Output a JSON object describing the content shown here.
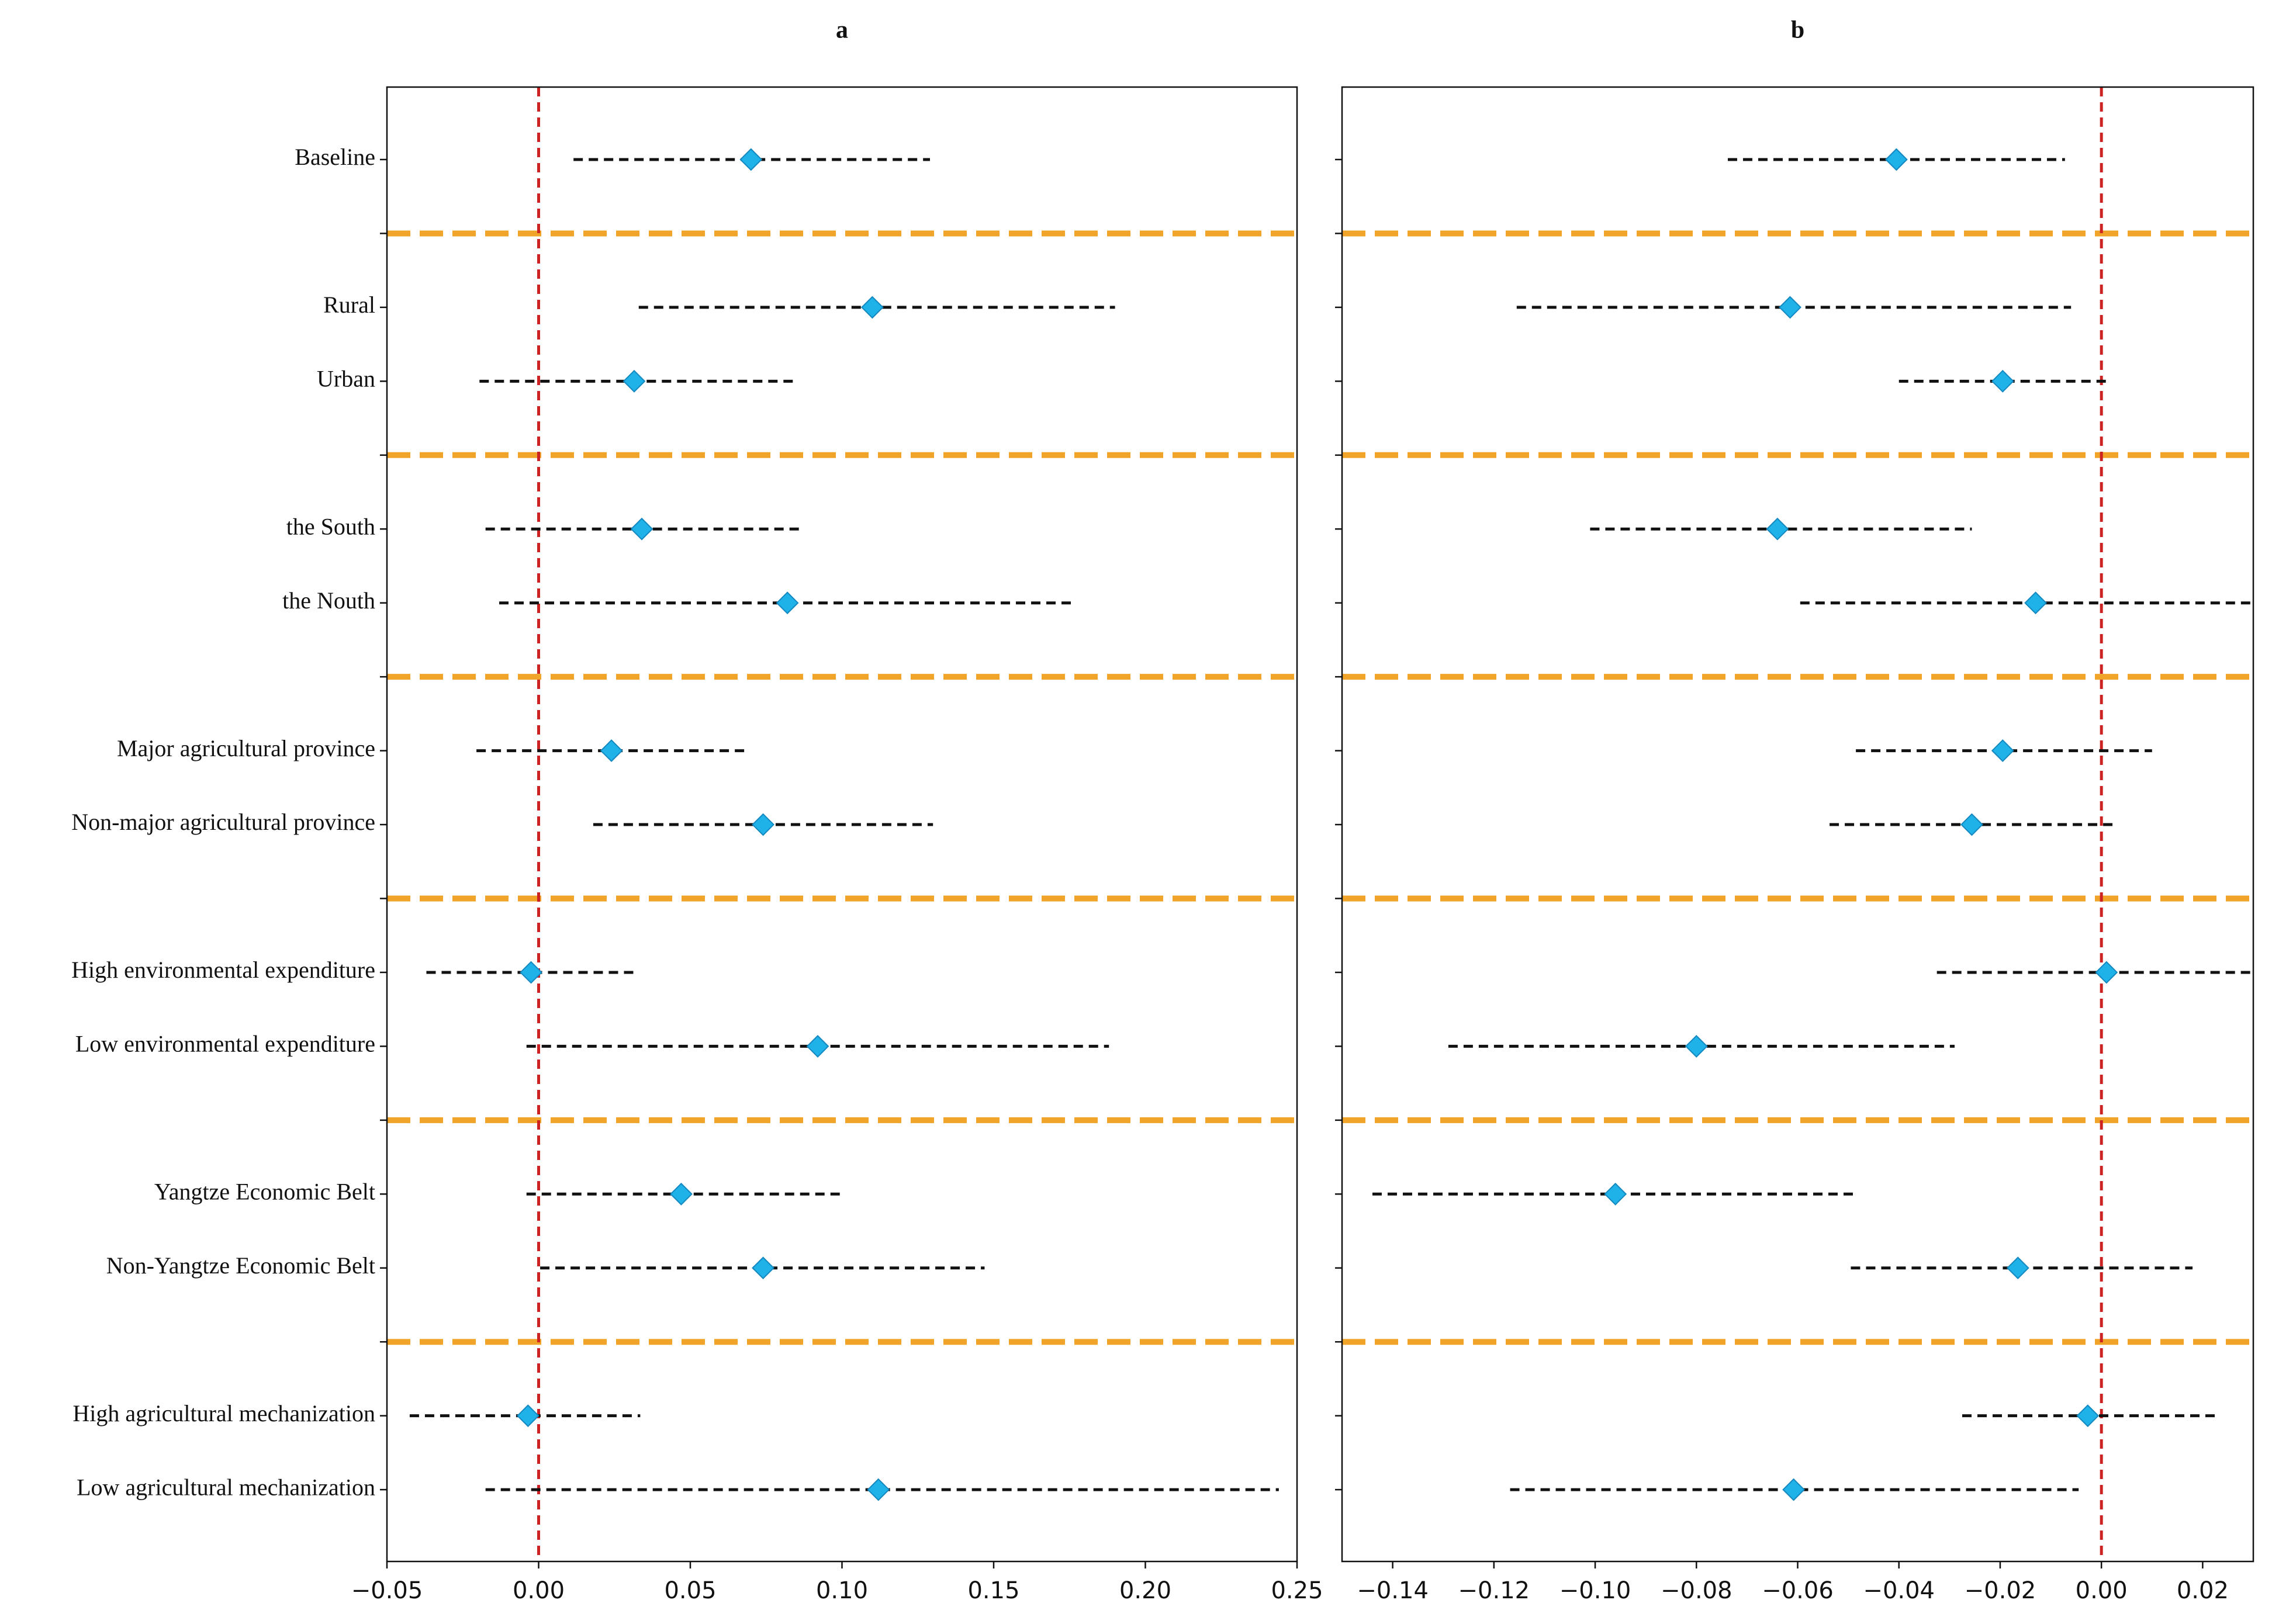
{
  "chart_data": [
    {
      "type": "forest",
      "title": "a",
      "categories": [
        "Baseline",
        null,
        "Rural",
        "Urban",
        null,
        "the South",
        "the Nouth",
        null,
        "Major agricultural province",
        "Non-major agricultural province",
        null,
        "High environmental expenditure",
        "Low environmental expenditure",
        null,
        "Yangtze Economic Belt",
        "Non-Yangtze Economic Belt",
        null,
        "High agricultural mechanization",
        "Low agricultural mechanization"
      ],
      "values": [
        0.07,
        null,
        0.11,
        0.0315,
        null,
        0.034,
        0.082,
        null,
        0.024,
        0.074,
        null,
        -0.0025,
        0.092,
        null,
        0.047,
        0.074,
        null,
        -0.0035,
        0.112
      ],
      "lower": [
        0.0115,
        null,
        0.033,
        -0.0195,
        null,
        -0.0175,
        -0.013,
        null,
        -0.0205,
        0.018,
        null,
        -0.037,
        -0.004,
        null,
        -0.004,
        0.0005,
        null,
        -0.0425,
        -0.0175
      ],
      "upper": [
        0.129,
        null,
        0.19,
        0.0845,
        null,
        0.0865,
        0.177,
        null,
        0.069,
        0.13,
        null,
        0.0325,
        0.188,
        null,
        0.1,
        0.147,
        null,
        0.0335,
        0.244
      ],
      "marker_color": "#1fb2e8",
      "line_color": "#111111",
      "separator_color": "#f0a52a",
      "ref_color": "#cc2222",
      "ref_line": 0,
      "xlim": [
        -0.05,
        0.25
      ],
      "xticks": [
        {
          "value": -0.05,
          "label": "−0.05"
        },
        {
          "value": 0,
          "label": "0.00"
        },
        {
          "value": 0.05,
          "label": "0.05"
        },
        {
          "value": 0.1,
          "label": "0.10"
        },
        {
          "value": 0.15,
          "label": "0.15"
        },
        {
          "value": 0.2,
          "label": "0.20"
        },
        {
          "value": 0.25,
          "label": "0.25"
        }
      ]
    },
    {
      "type": "forest",
      "title": "b",
      "values": [
        -0.0405,
        null,
        -0.0615,
        -0.0195,
        null,
        -0.064,
        -0.013,
        null,
        -0.0195,
        -0.0256,
        null,
        0.001,
        -0.08,
        null,
        -0.096,
        -0.0165,
        null,
        -0.0027,
        -0.0608
      ],
      "lower": [
        -0.0738,
        null,
        -0.1155,
        -0.04,
        null,
        -0.101,
        -0.0595,
        null,
        -0.0485,
        -0.0537,
        null,
        -0.0325,
        -0.129,
        null,
        -0.144,
        -0.0495,
        null,
        -0.0275,
        -0.1168
      ],
      "upper": [
        -0.0072,
        null,
        -0.006,
        0.0012,
        null,
        -0.0256,
        0.033,
        null,
        0.01,
        0.003,
        null,
        0.031,
        -0.029,
        null,
        -0.0485,
        0.018,
        null,
        0.023,
        -0.0045
      ],
      "marker_color": "#1fb2e8",
      "line_color": "#111111",
      "separator_color": "#f0a52a",
      "ref_color": "#cc2222",
      "ref_line": 0,
      "xlim": [
        -0.15,
        0.03
      ],
      "xticks": [
        {
          "value": -0.14,
          "label": "−0.14"
        },
        {
          "value": -0.12,
          "label": "−0.12"
        },
        {
          "value": -0.1,
          "label": "−0.10"
        },
        {
          "value": -0.08,
          "label": "−0.08"
        },
        {
          "value": -0.06,
          "label": "−0.06"
        },
        {
          "value": -0.04,
          "label": "−0.04"
        },
        {
          "value": -0.02,
          "label": "−0.02"
        },
        {
          "value": 0,
          "label": "0.00"
        },
        {
          "value": 0.02,
          "label": "0.02"
        }
      ]
    }
  ]
}
